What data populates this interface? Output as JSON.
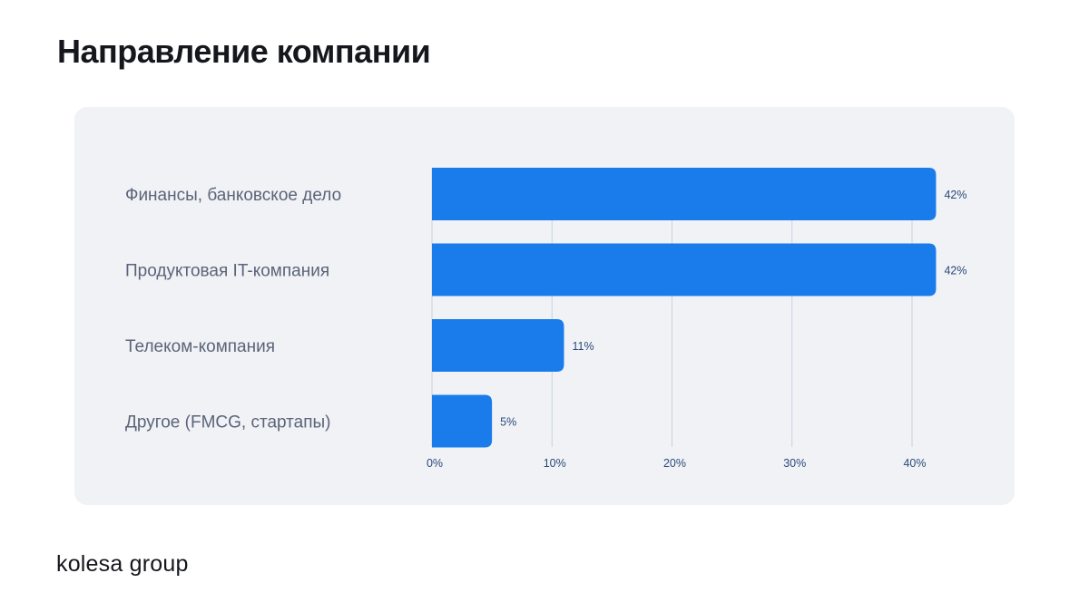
{
  "title": "Направление компании",
  "logo": "kolesa group",
  "colors": {
    "bar": "#1a7cea",
    "grid": "#c9d2df",
    "tick": "#2c4a78",
    "category": "#5b6478",
    "card": "#f0f2f6"
  },
  "chart_data": {
    "type": "bar",
    "orientation": "horizontal",
    "title": "",
    "categories": [
      "Финансы, банковское дело",
      "Продуктовая IT-компания",
      "Телеком-компания",
      "Другое (FMCG, стартапы)"
    ],
    "values": [
      42,
      42,
      11,
      5
    ],
    "data_labels": [
      "42%",
      "42%",
      "11%",
      "5%"
    ],
    "xlim": [
      0,
      40
    ],
    "xticks": [
      0,
      10,
      20,
      30,
      40
    ],
    "xtick_labels": [
      "0%",
      "10%",
      "20%",
      "30%",
      "40%"
    ],
    "grid": "vertical",
    "legend": "none"
  }
}
